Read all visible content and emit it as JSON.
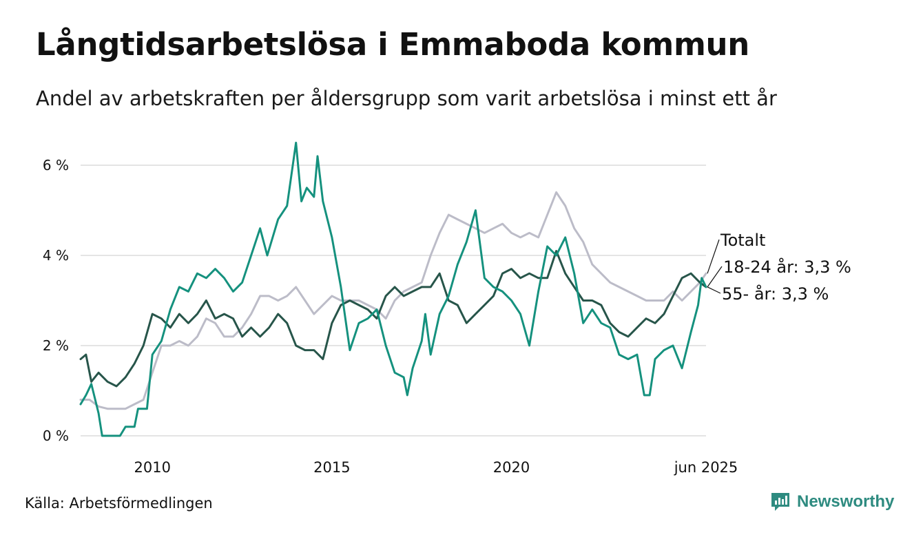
{
  "title": "Långtidsarbetslösa i Emmaboda kommun",
  "subtitle": "Andel av arbetskraften per åldersgrupp som varit arbetslösa i minst ett år",
  "source": "Källa: Arbetsförmedlingen",
  "brand": {
    "name": "Newsworthy",
    "icon": "newsworthy-logo-icon",
    "color": "#2e8b80"
  },
  "chart_data": {
    "type": "line",
    "title": "Långtidsarbetslösa i Emmaboda kommun",
    "subtitle": "Andel av arbetskraften per åldersgrupp som varit arbetslösa i minst ett år",
    "xlabel": "",
    "ylabel": "",
    "xlim": [
      2008.0,
      2025.42
    ],
    "ylim": [
      0,
      6.5
    ],
    "y_unit": "%",
    "grid": true,
    "legend": "direct labels at line ends (right)",
    "x_ticks": [
      {
        "value": 2010,
        "label": "2010"
      },
      {
        "value": 2015,
        "label": "2015"
      },
      {
        "value": 2020,
        "label": "2020"
      },
      {
        "value": 2025.42,
        "label": "jun 2025"
      }
    ],
    "y_ticks": [
      {
        "value": 0,
        "label": "0 %"
      },
      {
        "value": 2,
        "label": "2 %"
      },
      {
        "value": 4,
        "label": "4 %"
      },
      {
        "value": 6,
        "label": "6 %"
      }
    ],
    "series": [
      {
        "name": "Totalt",
        "color": "#bcbcc8",
        "label": "Totalt",
        "points": [
          [
            2008.0,
            0.8
          ],
          [
            2008.25,
            0.8
          ],
          [
            2008.5,
            0.65
          ],
          [
            2008.75,
            0.6
          ],
          [
            2009.0,
            0.6
          ],
          [
            2009.25,
            0.6
          ],
          [
            2009.5,
            0.7
          ],
          [
            2009.75,
            0.8
          ],
          [
            2010.0,
            1.4
          ],
          [
            2010.25,
            2.0
          ],
          [
            2010.5,
            2.0
          ],
          [
            2010.75,
            2.1
          ],
          [
            2011.0,
            2.0
          ],
          [
            2011.25,
            2.2
          ],
          [
            2011.5,
            2.6
          ],
          [
            2011.75,
            2.5
          ],
          [
            2012.0,
            2.2
          ],
          [
            2012.25,
            2.2
          ],
          [
            2012.5,
            2.4
          ],
          [
            2012.75,
            2.7
          ],
          [
            2013.0,
            3.1
          ],
          [
            2013.25,
            3.1
          ],
          [
            2013.5,
            3.0
          ],
          [
            2013.75,
            3.1
          ],
          [
            2014.0,
            3.3
          ],
          [
            2014.25,
            3.0
          ],
          [
            2014.5,
            2.7
          ],
          [
            2014.75,
            2.9
          ],
          [
            2015.0,
            3.1
          ],
          [
            2015.25,
            3.0
          ],
          [
            2015.5,
            3.0
          ],
          [
            2015.75,
            3.0
          ],
          [
            2016.0,
            2.9
          ],
          [
            2016.25,
            2.8
          ],
          [
            2016.5,
            2.6
          ],
          [
            2016.75,
            3.0
          ],
          [
            2017.0,
            3.2
          ],
          [
            2017.25,
            3.3
          ],
          [
            2017.5,
            3.4
          ],
          [
            2017.75,
            4.0
          ],
          [
            2018.0,
            4.5
          ],
          [
            2018.25,
            4.9
          ],
          [
            2018.5,
            4.8
          ],
          [
            2018.75,
            4.7
          ],
          [
            2019.0,
            4.6
          ],
          [
            2019.25,
            4.5
          ],
          [
            2019.5,
            4.6
          ],
          [
            2019.75,
            4.7
          ],
          [
            2020.0,
            4.5
          ],
          [
            2020.25,
            4.4
          ],
          [
            2020.5,
            4.5
          ],
          [
            2020.75,
            4.4
          ],
          [
            2021.0,
            4.9
          ],
          [
            2021.25,
            5.4
          ],
          [
            2021.5,
            5.1
          ],
          [
            2021.75,
            4.6
          ],
          [
            2022.0,
            4.3
          ],
          [
            2022.25,
            3.8
          ],
          [
            2022.5,
            3.6
          ],
          [
            2022.75,
            3.4
          ],
          [
            2023.0,
            3.3
          ],
          [
            2023.25,
            3.2
          ],
          [
            2023.5,
            3.1
          ],
          [
            2023.75,
            3.0
          ],
          [
            2024.0,
            3.0
          ],
          [
            2024.25,
            3.0
          ],
          [
            2024.5,
            3.2
          ],
          [
            2024.75,
            3.0
          ],
          [
            2025.0,
            3.2
          ],
          [
            2025.25,
            3.4
          ],
          [
            2025.42,
            3.6
          ]
        ]
      },
      {
        "name": "18-24 år",
        "color": "#27554a",
        "label": "18-24 år: 3,3 %",
        "points": [
          [
            2008.0,
            1.7
          ],
          [
            2008.15,
            1.8
          ],
          [
            2008.3,
            1.2
          ],
          [
            2008.5,
            1.4
          ],
          [
            2008.75,
            1.2
          ],
          [
            2009.0,
            1.1
          ],
          [
            2009.25,
            1.3
          ],
          [
            2009.5,
            1.6
          ],
          [
            2009.75,
            2.0
          ],
          [
            2010.0,
            2.7
          ],
          [
            2010.25,
            2.6
          ],
          [
            2010.5,
            2.4
          ],
          [
            2010.75,
            2.7
          ],
          [
            2011.0,
            2.5
          ],
          [
            2011.25,
            2.7
          ],
          [
            2011.5,
            3.0
          ],
          [
            2011.75,
            2.6
          ],
          [
            2012.0,
            2.7
          ],
          [
            2012.25,
            2.6
          ],
          [
            2012.5,
            2.2
          ],
          [
            2012.75,
            2.4
          ],
          [
            2013.0,
            2.2
          ],
          [
            2013.25,
            2.4
          ],
          [
            2013.5,
            2.7
          ],
          [
            2013.75,
            2.5
          ],
          [
            2014.0,
            2.0
          ],
          [
            2014.25,
            1.9
          ],
          [
            2014.5,
            1.9
          ],
          [
            2014.75,
            1.7
          ],
          [
            2015.0,
            2.5
          ],
          [
            2015.25,
            2.9
          ],
          [
            2015.5,
            3.0
          ],
          [
            2015.75,
            2.9
          ],
          [
            2016.0,
            2.8
          ],
          [
            2016.25,
            2.6
          ],
          [
            2016.5,
            3.1
          ],
          [
            2016.75,
            3.3
          ],
          [
            2017.0,
            3.1
          ],
          [
            2017.25,
            3.2
          ],
          [
            2017.5,
            3.3
          ],
          [
            2017.75,
            3.3
          ],
          [
            2018.0,
            3.6
          ],
          [
            2018.25,
            3.0
          ],
          [
            2018.5,
            2.9
          ],
          [
            2018.75,
            2.5
          ],
          [
            2019.0,
            2.7
          ],
          [
            2019.25,
            2.9
          ],
          [
            2019.5,
            3.1
          ],
          [
            2019.75,
            3.6
          ],
          [
            2020.0,
            3.7
          ],
          [
            2020.25,
            3.5
          ],
          [
            2020.5,
            3.6
          ],
          [
            2020.75,
            3.5
          ],
          [
            2021.0,
            3.5
          ],
          [
            2021.25,
            4.1
          ],
          [
            2021.5,
            3.6
          ],
          [
            2021.75,
            3.3
          ],
          [
            2022.0,
            3.0
          ],
          [
            2022.25,
            3.0
          ],
          [
            2022.5,
            2.9
          ],
          [
            2022.75,
            2.5
          ],
          [
            2023.0,
            2.3
          ],
          [
            2023.25,
            2.2
          ],
          [
            2023.5,
            2.4
          ],
          [
            2023.75,
            2.6
          ],
          [
            2024.0,
            2.5
          ],
          [
            2024.25,
            2.7
          ],
          [
            2024.5,
            3.1
          ],
          [
            2024.75,
            3.5
          ],
          [
            2025.0,
            3.6
          ],
          [
            2025.25,
            3.4
          ],
          [
            2025.42,
            3.3
          ]
        ]
      },
      {
        "name": "55- år",
        "color": "#15917e",
        "label": "55- år: 3,3 %",
        "points": [
          [
            2008.0,
            0.7
          ],
          [
            2008.15,
            0.9
          ],
          [
            2008.3,
            1.15
          ],
          [
            2008.5,
            0.5
          ],
          [
            2008.6,
            0.0
          ],
          [
            2008.9,
            0.0
          ],
          [
            2009.1,
            0.0
          ],
          [
            2009.25,
            0.2
          ],
          [
            2009.5,
            0.2
          ],
          [
            2009.6,
            0.6
          ],
          [
            2009.85,
            0.6
          ],
          [
            2010.0,
            1.8
          ],
          [
            2010.25,
            2.1
          ],
          [
            2010.5,
            2.8
          ],
          [
            2010.75,
            3.3
          ],
          [
            2011.0,
            3.2
          ],
          [
            2011.25,
            3.6
          ],
          [
            2011.5,
            3.5
          ],
          [
            2011.75,
            3.7
          ],
          [
            2012.0,
            3.5
          ],
          [
            2012.25,
            3.2
          ],
          [
            2012.5,
            3.4
          ],
          [
            2012.75,
            4.0
          ],
          [
            2013.0,
            4.6
          ],
          [
            2013.2,
            4.0
          ],
          [
            2013.5,
            4.8
          ],
          [
            2013.75,
            5.1
          ],
          [
            2014.0,
            6.5
          ],
          [
            2014.15,
            5.2
          ],
          [
            2014.3,
            5.5
          ],
          [
            2014.5,
            5.3
          ],
          [
            2014.6,
            6.2
          ],
          [
            2014.75,
            5.2
          ],
          [
            2015.0,
            4.4
          ],
          [
            2015.25,
            3.3
          ],
          [
            2015.5,
            1.9
          ],
          [
            2015.75,
            2.5
          ],
          [
            2016.0,
            2.6
          ],
          [
            2016.25,
            2.8
          ],
          [
            2016.5,
            2.0
          ],
          [
            2016.75,
            1.4
          ],
          [
            2017.0,
            1.3
          ],
          [
            2017.1,
            0.9
          ],
          [
            2017.25,
            1.5
          ],
          [
            2017.5,
            2.1
          ],
          [
            2017.6,
            2.7
          ],
          [
            2017.75,
            1.8
          ],
          [
            2018.0,
            2.7
          ],
          [
            2018.25,
            3.1
          ],
          [
            2018.5,
            3.8
          ],
          [
            2018.75,
            4.3
          ],
          [
            2019.0,
            5.0
          ],
          [
            2019.25,
            3.5
          ],
          [
            2019.5,
            3.3
          ],
          [
            2019.75,
            3.2
          ],
          [
            2020.0,
            3.0
          ],
          [
            2020.25,
            2.7
          ],
          [
            2020.5,
            2.0
          ],
          [
            2020.75,
            3.2
          ],
          [
            2021.0,
            4.2
          ],
          [
            2021.25,
            4.0
          ],
          [
            2021.5,
            4.4
          ],
          [
            2021.75,
            3.6
          ],
          [
            2022.0,
            2.5
          ],
          [
            2022.25,
            2.8
          ],
          [
            2022.5,
            2.5
          ],
          [
            2022.75,
            2.4
          ],
          [
            2023.0,
            1.8
          ],
          [
            2023.25,
            1.7
          ],
          [
            2023.5,
            1.8
          ],
          [
            2023.7,
            0.9
          ],
          [
            2023.85,
            0.9
          ],
          [
            2024.0,
            1.7
          ],
          [
            2024.25,
            1.9
          ],
          [
            2024.5,
            2.0
          ],
          [
            2024.75,
            1.5
          ],
          [
            2025.0,
            2.3
          ],
          [
            2025.2,
            2.9
          ],
          [
            2025.3,
            3.5
          ],
          [
            2025.42,
            3.3
          ]
        ]
      }
    ]
  }
}
